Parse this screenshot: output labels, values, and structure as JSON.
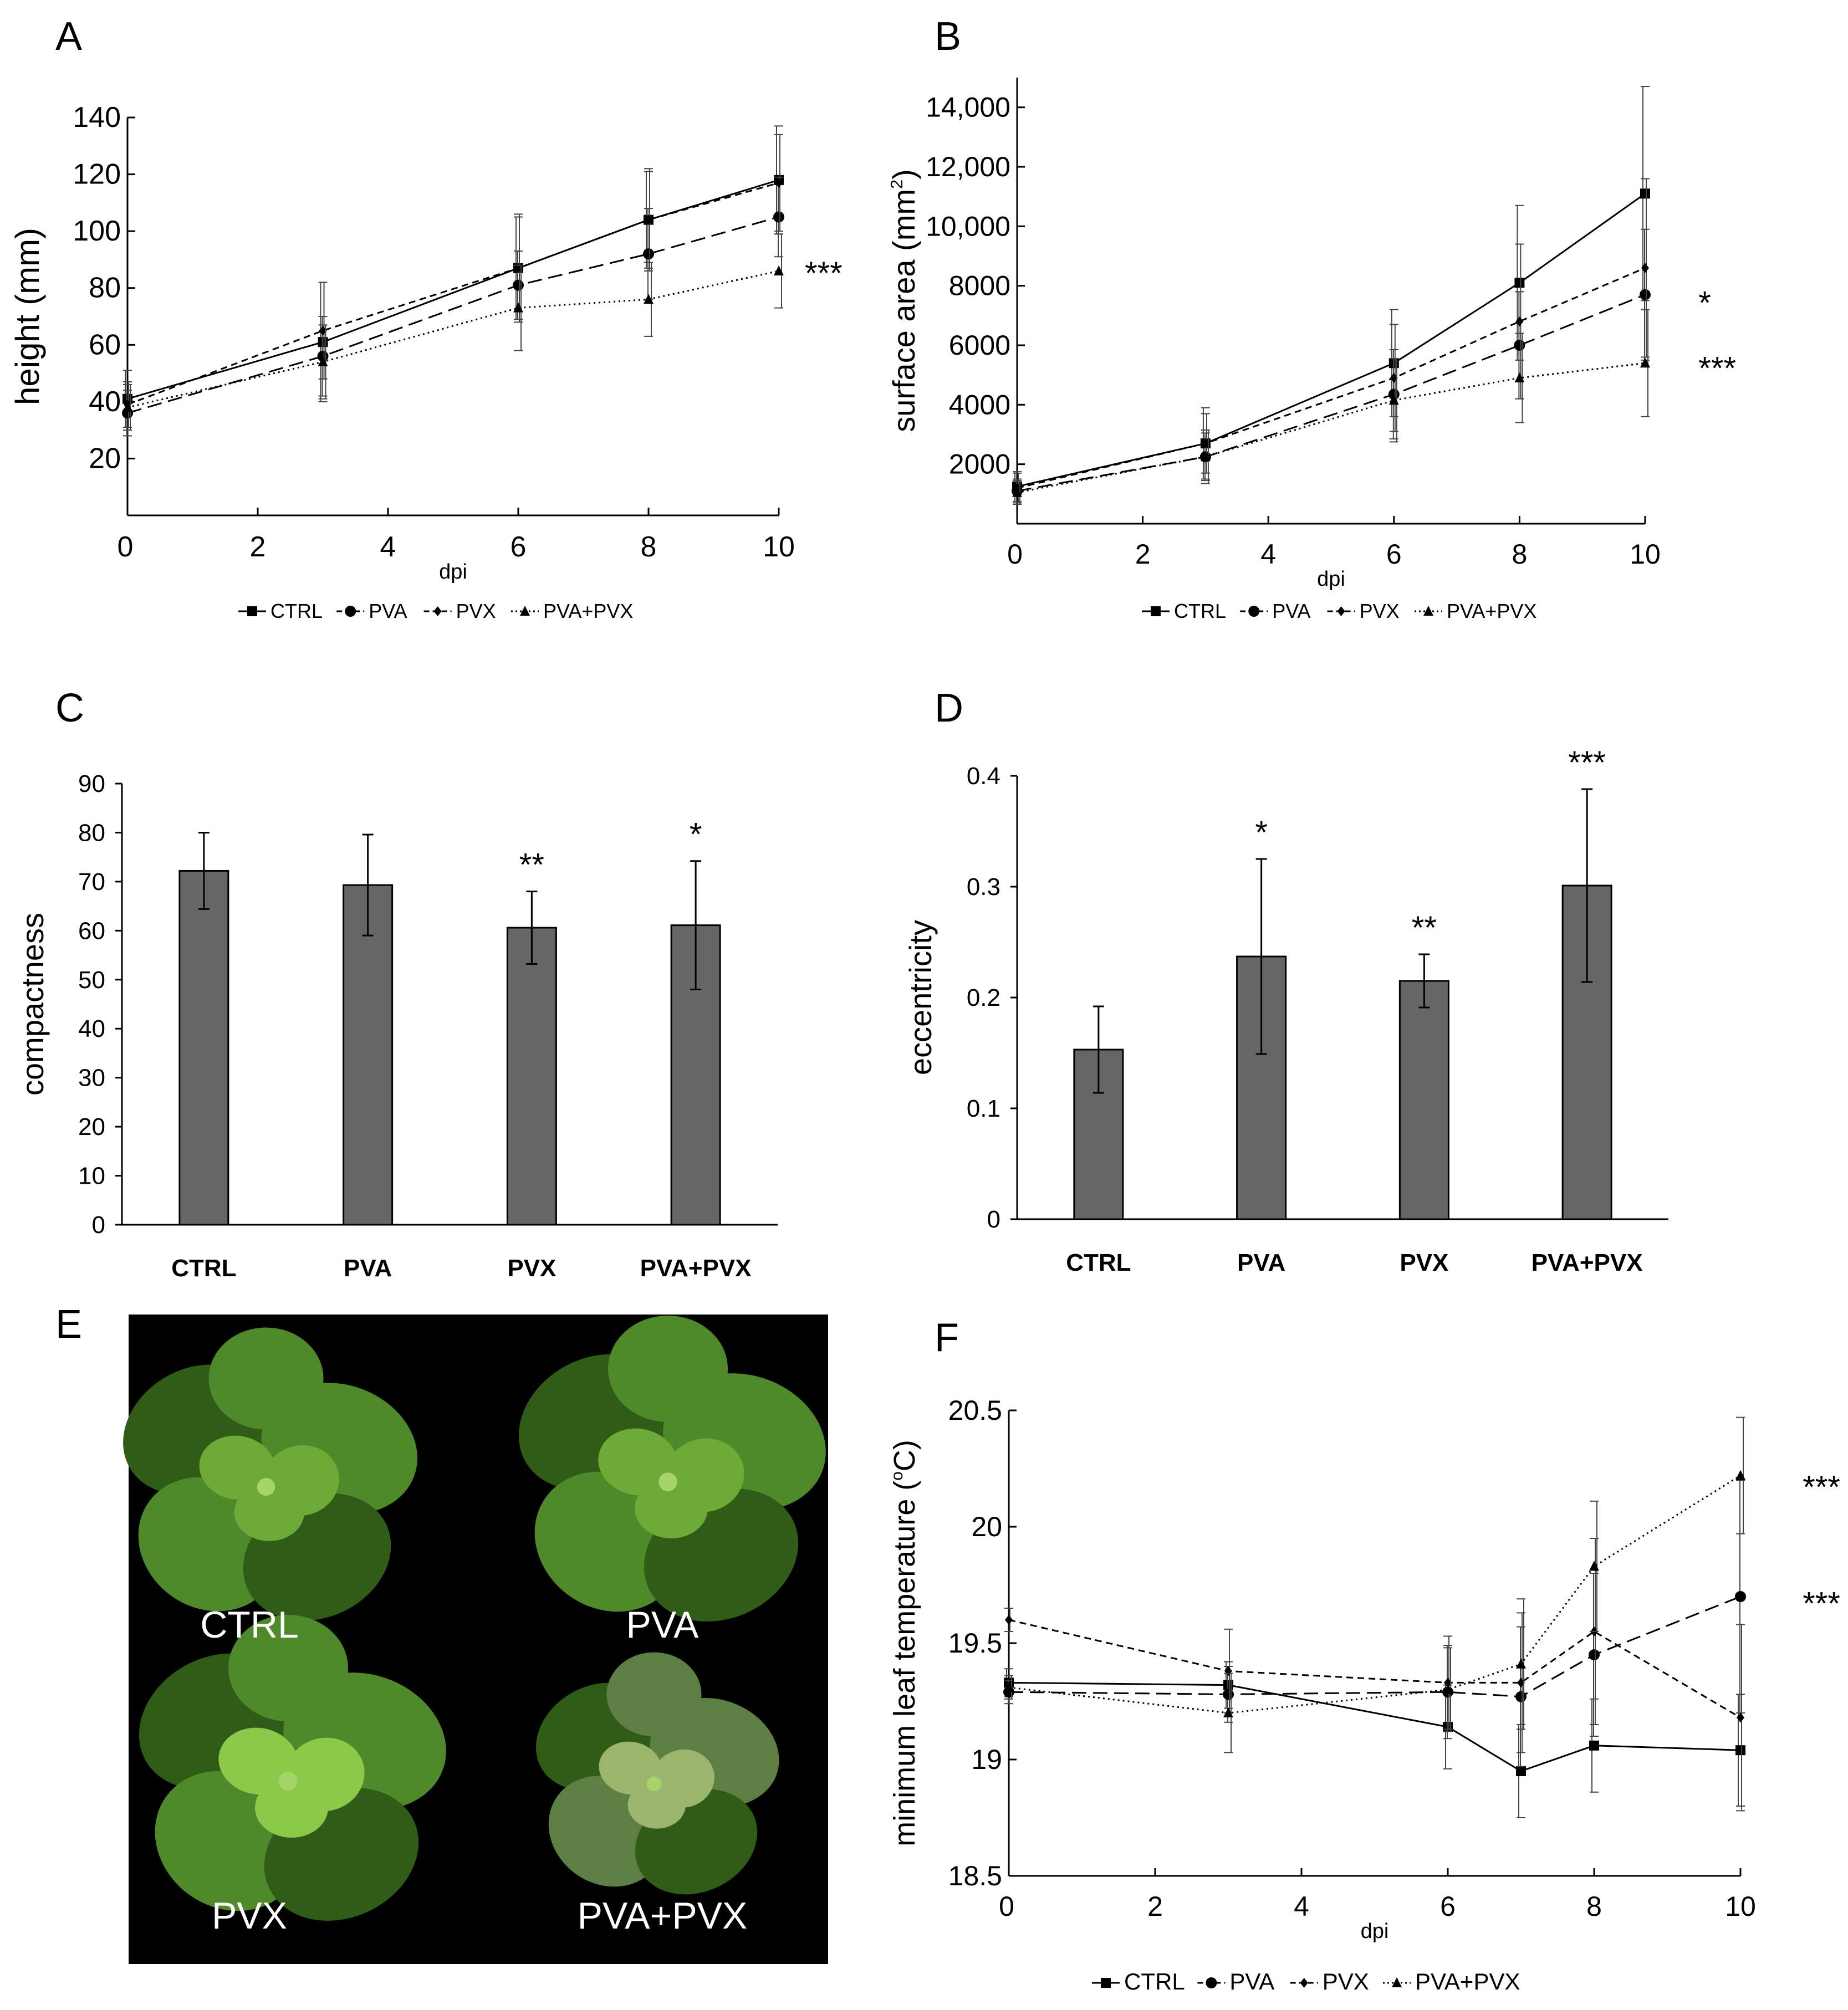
{
  "chart_data": [
    {
      "panel": "A",
      "type": "line",
      "xlabel": "dpi",
      "ylabel": "height (mm)",
      "ylabel_sup": "",
      "xlim": [
        0,
        10
      ],
      "ylim": [
        0,
        140
      ],
      "xticks": [
        0,
        2,
        4,
        6,
        8,
        10
      ],
      "yticks": [
        20,
        40,
        60,
        80,
        100,
        120,
        140
      ],
      "series": [
        {
          "name": "CTRL",
          "marker": "square",
          "dash": "solid",
          "x": [
            0,
            3,
            6,
            8,
            10
          ],
          "y": [
            41,
            61,
            87,
            104,
            118
          ],
          "err": [
            10,
            21,
            18,
            17,
            19
          ]
        },
        {
          "name": "PVA",
          "marker": "circle",
          "dash": "longdash",
          "x": [
            0,
            3,
            6,
            8,
            10
          ],
          "y": [
            36,
            56,
            81,
            92,
            105
          ],
          "err": [
            8,
            14,
            12,
            16,
            14
          ]
        },
        {
          "name": "PVX",
          "marker": "diamond",
          "dash": "shortdash",
          "x": [
            0,
            3,
            6,
            8,
            10
          ],
          "y": [
            39,
            65,
            87,
            104,
            117
          ],
          "err": [
            8,
            17,
            19,
            18,
            17
          ]
        },
        {
          "name": "PVA+PVX",
          "marker": "triangle",
          "dash": "dotted",
          "x": [
            0,
            3,
            6,
            8,
            10
          ],
          "y": [
            38,
            54,
            73,
            76,
            86
          ],
          "err": [
            8,
            13,
            15,
            13,
            13
          ]
        }
      ],
      "annotations": [
        {
          "text": "***",
          "x": 10.4,
          "y": 86
        }
      ]
    },
    {
      "panel": "B",
      "type": "line",
      "xlabel": "dpi",
      "ylabel": "surface area (mm",
      "ylabel_sup": "2",
      "ylabel_end": ")",
      "xlim": [
        0,
        10
      ],
      "ylim": [
        0,
        15000
      ],
      "xticks": [
        0,
        2,
        4,
        6,
        8,
        10
      ],
      "yticks": [
        2000,
        4000,
        6000,
        8000,
        10000,
        12000,
        14000
      ],
      "ytick_labels": [
        "2000",
        "4000",
        "6000",
        "8000",
        "10,000",
        "12,000",
        "14,000"
      ],
      "series": [
        {
          "name": "CTRL",
          "marker": "square",
          "dash": "solid",
          "x": [
            0,
            3,
            6,
            8,
            10
          ],
          "y": [
            1250,
            2700,
            5400,
            8100,
            11100
          ],
          "err": [
            500,
            1200,
            1800,
            2600,
            3600
          ]
        },
        {
          "name": "PVA",
          "marker": "circle",
          "dash": "longdash",
          "x": [
            0,
            3,
            6,
            8,
            10
          ],
          "y": [
            1100,
            2250,
            4350,
            6000,
            7700
          ],
          "err": [
            400,
            800,
            1500,
            1800,
            2200
          ]
        },
        {
          "name": "PVX",
          "marker": "diamond",
          "dash": "shortdash",
          "x": [
            0,
            3,
            6,
            8,
            10
          ],
          "y": [
            1200,
            2700,
            4900,
            6800,
            8600
          ],
          "err": [
            500,
            1000,
            1800,
            2600,
            3000
          ]
        },
        {
          "name": "PVA+PVX",
          "marker": "triangle",
          "dash": "dotted",
          "x": [
            0,
            3,
            6,
            8,
            10
          ],
          "y": [
            1050,
            2250,
            4150,
            4900,
            5400
          ],
          "err": [
            400,
            900,
            1400,
            1500,
            1800
          ]
        }
      ],
      "annotations": [
        {
          "text": "*",
          "x": 10.85,
          "y": 7500
        },
        {
          "text": "***",
          "x": 10.85,
          "y": 5300
        }
      ]
    },
    {
      "panel": "C",
      "type": "bar",
      "ylabel": "compactness",
      "categories": [
        "CTRL",
        "PVA",
        "PVX",
        "PVA+PVX"
      ],
      "values": [
        72.2,
        69.3,
        60.6,
        61.1
      ],
      "errors": [
        7.8,
        10.3,
        7.4,
        13.1
      ],
      "significance": [
        "",
        "",
        "**",
        "*"
      ],
      "ylim": [
        0,
        90
      ],
      "yticks": [
        0,
        10,
        20,
        30,
        40,
        50,
        60,
        70,
        80,
        90
      ]
    },
    {
      "panel": "D",
      "type": "bar",
      "ylabel": "eccentricity",
      "categories": [
        "CTRL",
        "PVA",
        "PVX",
        "PVA+PVX"
      ],
      "values": [
        0.153,
        0.237,
        0.215,
        0.301
      ],
      "errors": [
        0.039,
        0.088,
        0.024,
        0.087
      ],
      "significance": [
        "",
        "*",
        "**",
        "***"
      ],
      "ylim": [
        0,
        0.4
      ],
      "yticks": [
        0,
        0.1,
        0.2,
        0.3,
        0.4
      ],
      "ytick_labels": [
        "0",
        "0.1",
        "0.2",
        "0.3",
        "0.4"
      ]
    },
    {
      "panel": "F",
      "type": "line",
      "xlabel": "dpi",
      "ylabel": "minimum leaf temperature (",
      "ylabel_sup": "o",
      "ylabel_end": "C)",
      "xlim": [
        0,
        10
      ],
      "ylim": [
        18.5,
        20.5
      ],
      "xticks": [
        0,
        2,
        4,
        6,
        8,
        10
      ],
      "yticks": [
        18.5,
        19,
        19.5,
        20,
        20.5
      ],
      "ytick_labels": [
        "18.5",
        "19",
        "19.5",
        "20",
        "20.5"
      ],
      "series": [
        {
          "name": "CTRL",
          "marker": "square",
          "dash": "solid",
          "x": [
            0,
            3,
            6,
            7,
            8,
            10
          ],
          "y": [
            19.33,
            19.32,
            19.14,
            18.95,
            19.06,
            19.04
          ],
          "err": [
            0.06,
            0.1,
            0.18,
            0.2,
            0.2,
            0.24
          ]
        },
        {
          "name": "PVA",
          "marker": "circle",
          "dash": "longdash",
          "x": [
            0,
            3,
            6,
            7,
            8,
            10
          ],
          "y": [
            19.29,
            19.28,
            19.29,
            19.27,
            19.45,
            19.7
          ],
          "err": [
            0.05,
            0.12,
            0.2,
            0.3,
            0.35,
            0.5
          ]
        },
        {
          "name": "PVX",
          "marker": "diamond",
          "dash": "shortdash",
          "x": [
            0,
            3,
            6,
            7,
            8,
            10
          ],
          "y": [
            19.6,
            19.38,
            19.33,
            19.33,
            19.55,
            19.18
          ],
          "err": [
            0.05,
            0.18,
            0.2,
            0.3,
            0.4,
            0.4
          ]
        },
        {
          "name": "PVA+PVX",
          "marker": "triangle",
          "dash": "dotted",
          "x": [
            0,
            3,
            6,
            7,
            8,
            10
          ],
          "y": [
            19.31,
            19.2,
            19.3,
            19.41,
            19.83,
            20.22
          ],
          "err": [
            0.05,
            0.17,
            0.18,
            0.28,
            0.28,
            0.25
          ]
        }
      ],
      "annotations": [
        {
          "text": "***",
          "x": 10.85,
          "y": 20.18
        },
        {
          "text": "***",
          "x": 10.85,
          "y": 19.68
        }
      ]
    }
  ],
  "panels": {
    "A": {
      "label": "A"
    },
    "B": {
      "label": "B"
    },
    "C": {
      "label": "C"
    },
    "D": {
      "label": "D"
    },
    "E": {
      "label": "E",
      "photo_labels": [
        "CTRL",
        "PVA",
        "PVX",
        "PVA+PVX"
      ]
    },
    "F": {
      "label": "F"
    }
  },
  "colors": {
    "bar_fill": "#666666",
    "photo_background": "#000000",
    "leaf_dark": "#2f5d18",
    "leaf_mid": "#4f8a2a",
    "leaf_light": "#8cc84a"
  }
}
